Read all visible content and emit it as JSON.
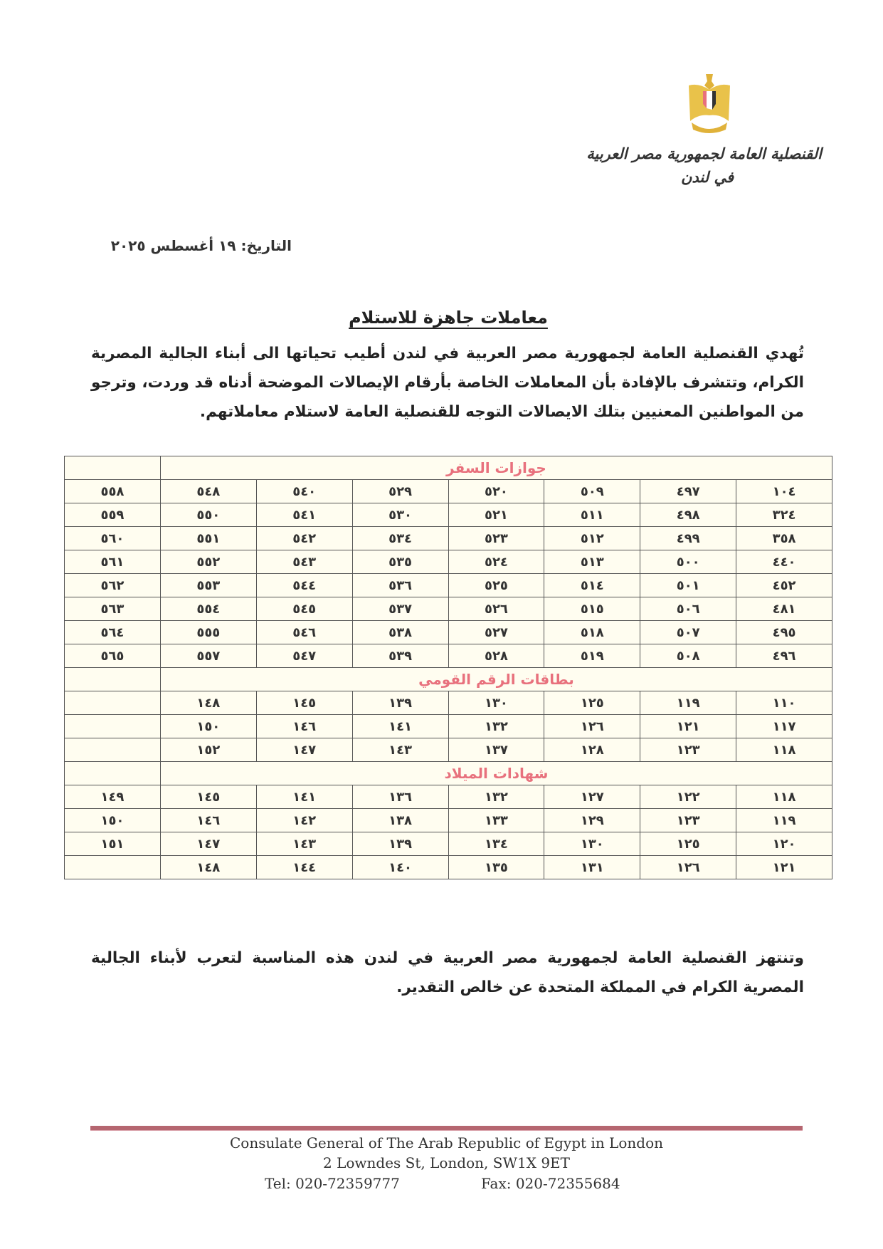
{
  "header": {
    "line1": "القنصلية العامة لجمهورية مصر العربية",
    "line2": "في لندن",
    "emblem_icon": "egypt-eagle-emblem"
  },
  "date": "التاريخ: ١٩ أغسطس ٢٠٢٥",
  "title": "معاملات جاهزة للاستلام",
  "intro": "تُهدي القنصلية العامة لجمهورية مصر العربية في لندن أطيب تحياتها الى أبناء الجالية المصرية الكرام، وتتشرف بالإفادة بأن المعاملات الخاصة بأرقام الإيصالات الموضحة أدناه قد وردت، وترجو من المواطنين المعنيين بتلك الايصالات التوجه للقنصلية العامة لاستلام معاملاتهم.",
  "sections": [
    {
      "title": "جوازات السفر",
      "rows": [
        [
          "١٠٤",
          "٤٩٧",
          "٥٠٩",
          "٥٢٠",
          "٥٢٩",
          "٥٤٠",
          "٥٤٨",
          "٥٥٨"
        ],
        [
          "٣٢٤",
          "٤٩٨",
          "٥١١",
          "٥٢١",
          "٥٣٠",
          "٥٤١",
          "٥٥٠",
          "٥٥٩"
        ],
        [
          "٣٥٨",
          "٤٩٩",
          "٥١٢",
          "٥٢٣",
          "٥٣٤",
          "٥٤٢",
          "٥٥١",
          "٥٦٠"
        ],
        [
          "٤٤٠",
          "٥٠٠",
          "٥١٣",
          "٥٢٤",
          "٥٣٥",
          "٥٤٣",
          "٥٥٢",
          "٥٦١"
        ],
        [
          "٤٥٢",
          "٥٠١",
          "٥١٤",
          "٥٢٥",
          "٥٣٦",
          "٥٤٤",
          "٥٥٣",
          "٥٦٢"
        ],
        [
          "٤٨١",
          "٥٠٦",
          "٥١٥",
          "٥٢٦",
          "٥٣٧",
          "٥٤٥",
          "٥٥٤",
          "٥٦٣"
        ],
        [
          "٤٩٥",
          "٥٠٧",
          "٥١٨",
          "٥٢٧",
          "٥٣٨",
          "٥٤٦",
          "٥٥٥",
          "٥٦٤"
        ],
        [
          "٤٩٦",
          "٥٠٨",
          "٥١٩",
          "٥٢٨",
          "٥٣٩",
          "٥٤٧",
          "٥٥٧",
          "٥٦٥"
        ]
      ]
    },
    {
      "title": "بطاقات الرقم القومي",
      "rows": [
        [
          "١١٠",
          "١١٩",
          "١٢٥",
          "١٣٠",
          "١٣٩",
          "١٤٥",
          "١٤٨",
          ""
        ],
        [
          "١١٧",
          "١٢١",
          "١٢٦",
          "١٣٢",
          "١٤١",
          "١٤٦",
          "١٥٠",
          ""
        ],
        [
          "١١٨",
          "١٢٣",
          "١٢٨",
          "١٣٧",
          "١٤٣",
          "١٤٧",
          "١٥٢",
          ""
        ]
      ]
    },
    {
      "title": "شهادات الميلاد",
      "rows": [
        [
          "١١٨",
          "١٢٢",
          "١٢٧",
          "١٣٢",
          "١٣٦",
          "١٤١",
          "١٤٥",
          "١٤٩"
        ],
        [
          "١١٩",
          "١٢٣",
          "١٢٩",
          "١٣٣",
          "١٣٨",
          "١٤٢",
          "١٤٦",
          "١٥٠"
        ],
        [
          "١٢٠",
          "١٢٥",
          "١٣٠",
          "١٣٤",
          "١٣٩",
          "١٤٣",
          "١٤٧",
          "١٥١"
        ],
        [
          "١٢١",
          "١٢٦",
          "١٣١",
          "١٣٥",
          "١٤٠",
          "١٤٤",
          "١٤٨",
          ""
        ]
      ]
    }
  ],
  "closing": "وتنتهز القنصلية العامة لجمهورية مصر العربية في لندن هذه المناسبة لتعرب لأبناء الجالية المصرية الكرام في المملكة المتحدة عن خالص التقدير.",
  "footer": {
    "name": "Consulate General of The Arab Republic of Egypt in London",
    "address": "2 Lowndes St, London, SW1X 9ET",
    "tel": "Tel: 020-72359777",
    "fax": "Fax: 020-72355684",
    "rule_color": "#b56670"
  }
}
